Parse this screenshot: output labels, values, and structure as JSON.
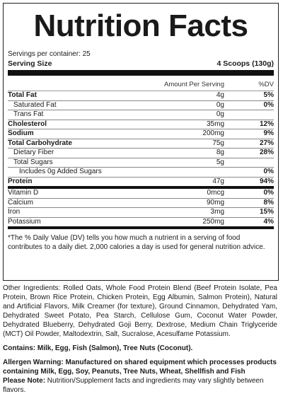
{
  "title": "Nutrition Facts",
  "servings_per_container": "Servings per container: 25",
  "serving_size_label": "Serving Size",
  "serving_size_value": "4 Scoops (130g)",
  "header": {
    "amount": "Amount Per Serving",
    "dv": "%DV"
  },
  "rows": [
    {
      "name": "Total Fat",
      "amount": "4g",
      "dv": "5%"
    },
    {
      "name": "Saturated Fat",
      "amount": "0g",
      "dv": "0%"
    },
    {
      "name": "Trans Fat",
      "amount": "0g",
      "dv": ""
    },
    {
      "name": "Cholesterol",
      "amount": "35mg",
      "dv": "12%"
    },
    {
      "name": "Sodium",
      "amount": "200mg",
      "dv": "9%"
    },
    {
      "name": "Total Carbohydrate",
      "amount": "75g",
      "dv": "27%"
    },
    {
      "name": "Dietary Fiber",
      "amount": "8g",
      "dv": "28%"
    },
    {
      "name": "Total Sugars",
      "amount": "5g",
      "dv": ""
    },
    {
      "name": "Includes 0g Added Sugars",
      "amount": "",
      "dv": "0%"
    },
    {
      "name": "Protein",
      "amount": "47g",
      "dv": "94%"
    },
    {
      "name": "Vitamin D",
      "amount": "0mcg",
      "dv": "0%"
    },
    {
      "name": "Calcium",
      "amount": "90mg",
      "dv": "8%"
    },
    {
      "name": "Iron",
      "amount": "3mg",
      "dv": "15%"
    },
    {
      "name": "Potassium",
      "amount": "250mg",
      "dv": "4%"
    }
  ],
  "footnote": "*The % Daily Value (DV) tells you how much a nutrient in a serving of food contributes to a daily diet. 2,000 calories a day is used for general nutrition advice.",
  "other_ingredients": "Other Ingredients: Rolled Oats, Whole Food Protein Blend (Beef Protein Isolate, Pea Protein, Brown Rice Protein, Chicken Protein, Egg Albumin, Salmon Protein), Natural and Artificial Flavors, Milk Creamer (for texture), Ground Cinnamon, Dehydrated Yam, Dehydrated Sweet Potato, Pea Starch, Cellulose Gum, Coconut Water Powder, Dehydrated Blueberry, Dehydrated Goji Berry, Dextrose, Medium Chain Triglyceride (MCT) Oil Powder, Maltodextrin, Salt, Sucralose, Acesulfame Potassium.",
  "contains": "Contains: Milk, Egg, Fish (Salmon), Tree Nuts (Coconut).",
  "allergen_warning": "Allergen Warning: Manufactured on shared equipment which processes products containing Milk, Egg, Soy, Peanuts, Tree Nuts, Wheat, Shellfish and Fish",
  "note_label": "Please Note:",
  "note_text": " Nutrition/Supplement facts and ingredients may vary slightly between flavors."
}
